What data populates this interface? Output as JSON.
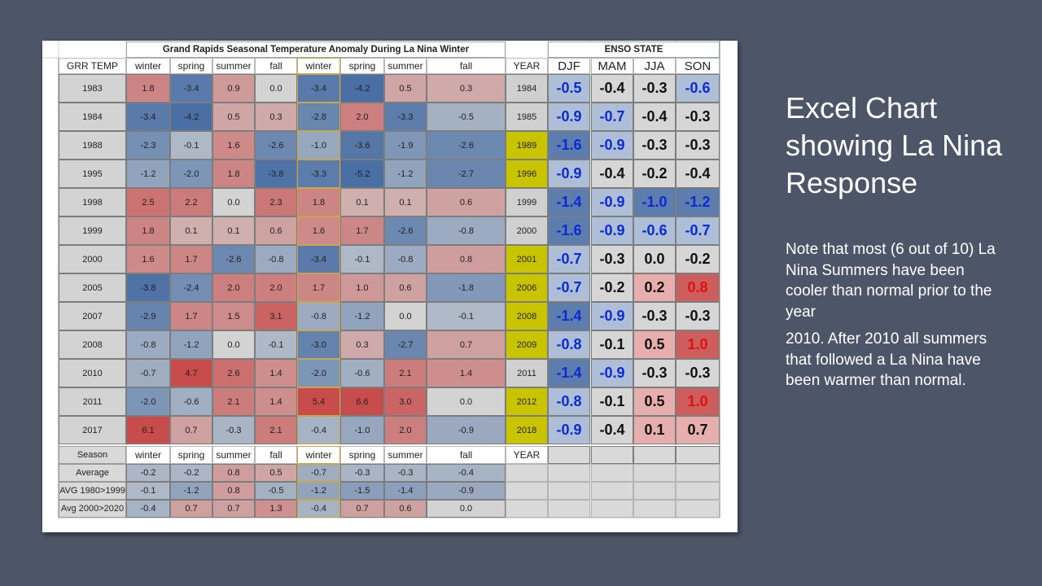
{
  "table": {
    "title": "Grand Rapids Seasonal Temperature Anomaly During La Nina Winter",
    "enso_title": "ENSO STATE",
    "corner_label": "GRR TEMP",
    "season_headers": [
      "winter",
      "spring",
      "summer",
      "fall",
      "winter",
      "spring",
      "summer",
      "fall"
    ],
    "year_header": "YEAR",
    "enso_headers": [
      "DJF",
      "MAM",
      "JJA",
      "SON"
    ],
    "rows": [
      {
        "label": "1983",
        "values": [
          "1.8",
          "-3.4",
          "0.9",
          "0.0",
          "-3.4",
          "-4.2",
          "0.5",
          "0.3"
        ],
        "year": "1984",
        "year_hl": false,
        "enso": [
          "-0.5",
          "-0.4",
          "-0.3",
          "-0.6"
        ]
      },
      {
        "label": "1984",
        "values": [
          "-3.4",
          "-4.2",
          "0.5",
          "0.3",
          "-2.8",
          "2.0",
          "-3.3",
          "-0.5"
        ],
        "year": "1985",
        "year_hl": false,
        "enso": [
          "-0.9",
          "-0.7",
          "-0.4",
          "-0.3"
        ]
      },
      {
        "label": "1988",
        "values": [
          "-2.3",
          "-0.1",
          "1.6",
          "-2.6",
          "-1.0",
          "-3.6",
          "-1.9",
          "-2.6"
        ],
        "year": "1989",
        "year_hl": true,
        "enso": [
          "-1.6",
          "-0.9",
          "-0.3",
          "-0.3"
        ]
      },
      {
        "label": "1995",
        "values": [
          "-1.2",
          "-2.0",
          "1.8",
          "-3.8",
          "-3.3",
          "-5.2",
          "-1.2",
          "-2.7"
        ],
        "year": "1996",
        "year_hl": true,
        "enso": [
          "-0.9",
          "-0.4",
          "-0.2",
          "-0.4"
        ]
      },
      {
        "label": "1998",
        "values": [
          "2.5",
          "2.2",
          "0.0",
          "2.3",
          "1.8",
          "0.1",
          "0.1",
          "0.6"
        ],
        "year": "1999",
        "year_hl": false,
        "enso": [
          "-1.4",
          "-0.9",
          "-1.0",
          "-1.2"
        ]
      },
      {
        "label": "1999",
        "values": [
          "1.8",
          "0.1",
          "0.1",
          "0.6",
          "1.6",
          "1.7",
          "-2.6",
          "-0.8"
        ],
        "year": "2000",
        "year_hl": false,
        "enso": [
          "-1.6",
          "-0.9",
          "-0.6",
          "-0.7"
        ]
      },
      {
        "label": "2000",
        "values": [
          "1.6",
          "1.7",
          "-2.6",
          "-0.8",
          "-3.4",
          "-0.1",
          "-0.8",
          "0.8"
        ],
        "year": "2001",
        "year_hl": true,
        "enso": [
          "-0.7",
          "-0.3",
          "0.0",
          "-0.2"
        ]
      },
      {
        "label": "2005",
        "values": [
          "-3.8",
          "-2.4",
          "2.0",
          "2.0",
          "1.7",
          "1.0",
          "0.6",
          "-1.8"
        ],
        "year": "2006",
        "year_hl": true,
        "enso": [
          "-0.7",
          "-0.2",
          "0.2",
          "0.8"
        ]
      },
      {
        "label": "2007",
        "values": [
          "-2.9",
          "1.7",
          "1.5",
          "3.1",
          "-0.8",
          "-1.2",
          "0.0",
          "-0.1"
        ],
        "year": "2008",
        "year_hl": true,
        "enso": [
          "-1.4",
          "-0.9",
          "-0.3",
          "-0.3"
        ]
      },
      {
        "label": "2008",
        "values": [
          "-0.8",
          "-1.2",
          "0.0",
          "-0.1",
          "-3.0",
          "0.3",
          "-2.7",
          "0.7"
        ],
        "year": "2009",
        "year_hl": true,
        "enso": [
          "-0.8",
          "-0.1",
          "0.5",
          "1.0"
        ]
      },
      {
        "label": "2010",
        "values": [
          "-0.7",
          "4.7",
          "2.6",
          "1.4",
          "-2.0",
          "-0.6",
          "2.1",
          "1.4"
        ],
        "year": "2011",
        "year_hl": false,
        "enso": [
          "-1.4",
          "-0.9",
          "-0.3",
          "-0.3"
        ]
      },
      {
        "label": "2011",
        "values": [
          "-2.0",
          "-0.6",
          "2.1",
          "1.4",
          "5.4",
          "6.6",
          "3.0",
          "0.0"
        ],
        "year": "2012",
        "year_hl": true,
        "enso": [
          "-0.8",
          "-0.1",
          "0.5",
          "1.0"
        ]
      },
      {
        "label": "2017",
        "values": [
          "6.1",
          "0.7",
          "-0.3",
          "2.1",
          "-0.4",
          "-1.0",
          "2.0",
          "-0.9"
        ],
        "year": "2018",
        "year_hl": true,
        "enso": [
          "-0.9",
          "-0.4",
          "0.1",
          "0.7"
        ]
      }
    ],
    "season_row_label": "Season",
    "summary_rows": [
      {
        "label": "Average",
        "values": [
          "-0.2",
          "-0.2",
          "0.8",
          "0.5",
          "-0.7",
          "-0.3",
          "-0.3",
          "-0.4"
        ]
      },
      {
        "label": "AVG 1980>1999",
        "values": [
          "-0.1",
          "-1.2",
          "0.8",
          "-0.5",
          "-1.2",
          "-1.5",
          "-1.4",
          "-0.9"
        ]
      },
      {
        "label": "Avg 2000>2020",
        "values": [
          "-0.4",
          "0.7",
          "0.7",
          "1.3",
          "-0.4",
          "0.7",
          "0.6",
          "0.0"
        ]
      }
    ]
  },
  "slide": {
    "title": "Excel Chart showing La Nina Response",
    "note_1": "Note that most (6 out of 10) La Nina Summers have been cooler than normal prior to the year",
    "note_2": "2010.  After 2010 all summers that followed a La Nina have been warmer than normal."
  },
  "colors": {
    "background": "#4d5668",
    "warm": "#c94c4c",
    "cool": "#4a6fa5",
    "neutral": "#d3d3d3",
    "enso_cool_text": "#0a2bd6",
    "enso_warm_text": "#e01010",
    "year_highlight": "#c9c400"
  }
}
